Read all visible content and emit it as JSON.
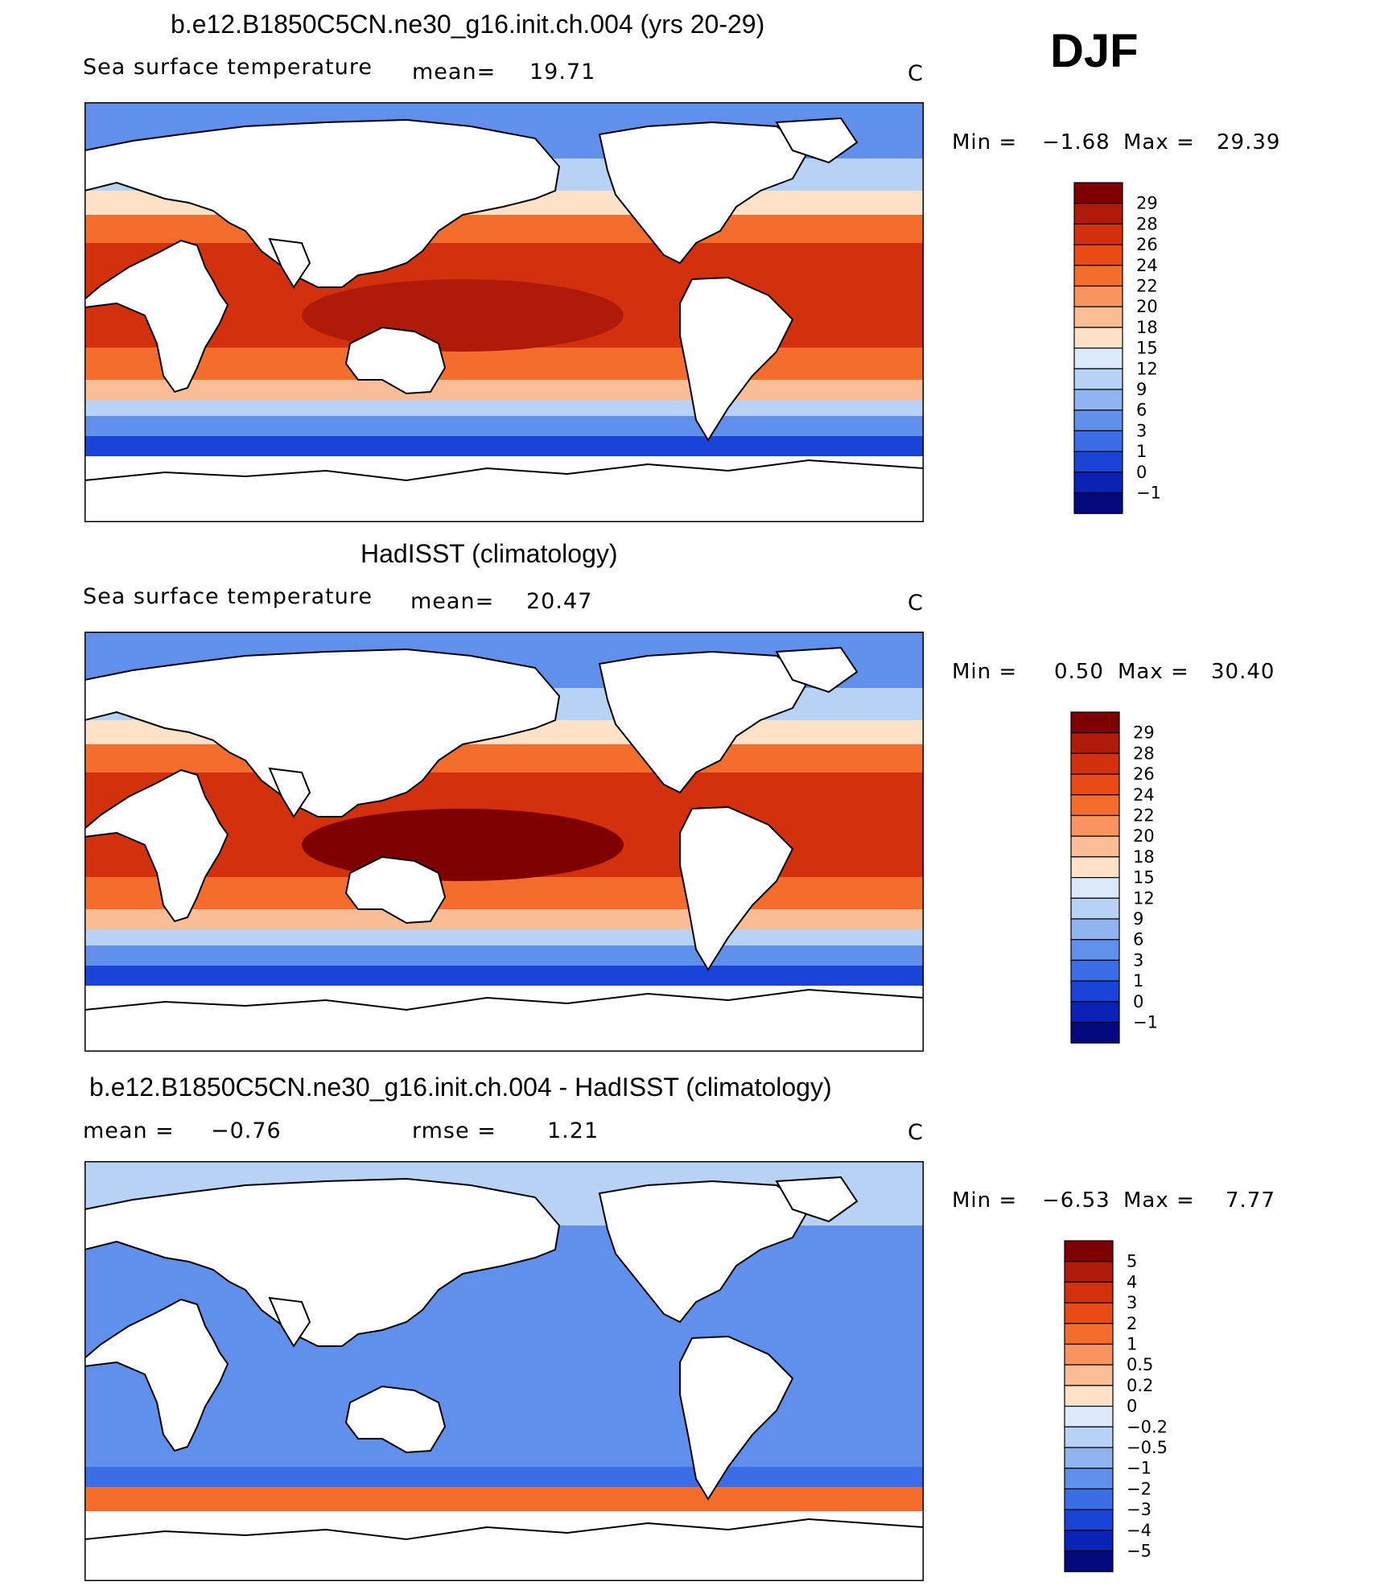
{
  "season": "DJF",
  "panels": [
    {
      "title": "b.e12.B1850C5CN.ne30_g16.init.ch.004 (yrs 20-29)",
      "variable": "Sea surface temperature",
      "mean_label": "mean=",
      "mean_value": "19.71",
      "units": "C",
      "min_label": "Min =",
      "min_value": "−1.68",
      "max_label": "Max =",
      "max_value": "29.39",
      "colorbar": {
        "labels": [
          "29",
          "28",
          "26",
          "24",
          "22",
          "20",
          "18",
          "15",
          "12",
          "9",
          "6",
          "3",
          "1",
          "0",
          "−1"
        ],
        "colors": [
          "#7f0000",
          "#b01a0a",
          "#d3310d",
          "#ea4a14",
          "#f46d2c",
          "#f99460",
          "#fbbd95",
          "#fde2c8",
          "#dbe9f8",
          "#b8d2f5",
          "#8fb4f0",
          "#6190ec",
          "#3a6de6",
          "#1a44d8",
          "#0a22b5",
          "#04097e"
        ]
      }
    },
    {
      "title": "HadISST (climatology)",
      "variable": "Sea surface temperature",
      "mean_label": "mean=",
      "mean_value": "20.47",
      "units": "C",
      "min_label": "Min =",
      "min_value": "0.50",
      "max_label": "Max =",
      "max_value": "30.40",
      "colorbar": {
        "labels": [
          "29",
          "28",
          "26",
          "24",
          "22",
          "20",
          "18",
          "15",
          "12",
          "9",
          "6",
          "3",
          "1",
          "0",
          "−1"
        ],
        "colors": [
          "#7f0000",
          "#b01a0a",
          "#d3310d",
          "#ea4a14",
          "#f46d2c",
          "#f99460",
          "#fbbd95",
          "#fde2c8",
          "#dbe9f8",
          "#b8d2f5",
          "#8fb4f0",
          "#6190ec",
          "#3a6de6",
          "#1a44d8",
          "#0a22b5",
          "#04097e"
        ]
      }
    },
    {
      "title": "b.e12.B1850C5CN.ne30_g16.init.ch.004 - HadISST (climatology)",
      "variable": "",
      "mean_label": "mean =",
      "mean_value": "−0.76",
      "rmse_label": "rmse =",
      "rmse_value": "1.21",
      "units": "C",
      "min_label": "Min =",
      "min_value": "−6.53",
      "max_label": "Max =",
      "max_value": "7.77",
      "colorbar": {
        "labels": [
          "5",
          "4",
          "3",
          "2",
          "1",
          "0.5",
          "0.2",
          "0",
          "−0.2",
          "−0.5",
          "−1",
          "−2",
          "−3",
          "−4",
          "−5"
        ],
        "colors": [
          "#7f0000",
          "#b01a0a",
          "#d3310d",
          "#ea4a14",
          "#f46d2c",
          "#f99460",
          "#fbbd95",
          "#fde2c8",
          "#dbe9f8",
          "#b8d2f5",
          "#8fb4f0",
          "#6190ec",
          "#3a6de6",
          "#1a44d8",
          "#0a22b5",
          "#04097e"
        ]
      }
    }
  ]
}
